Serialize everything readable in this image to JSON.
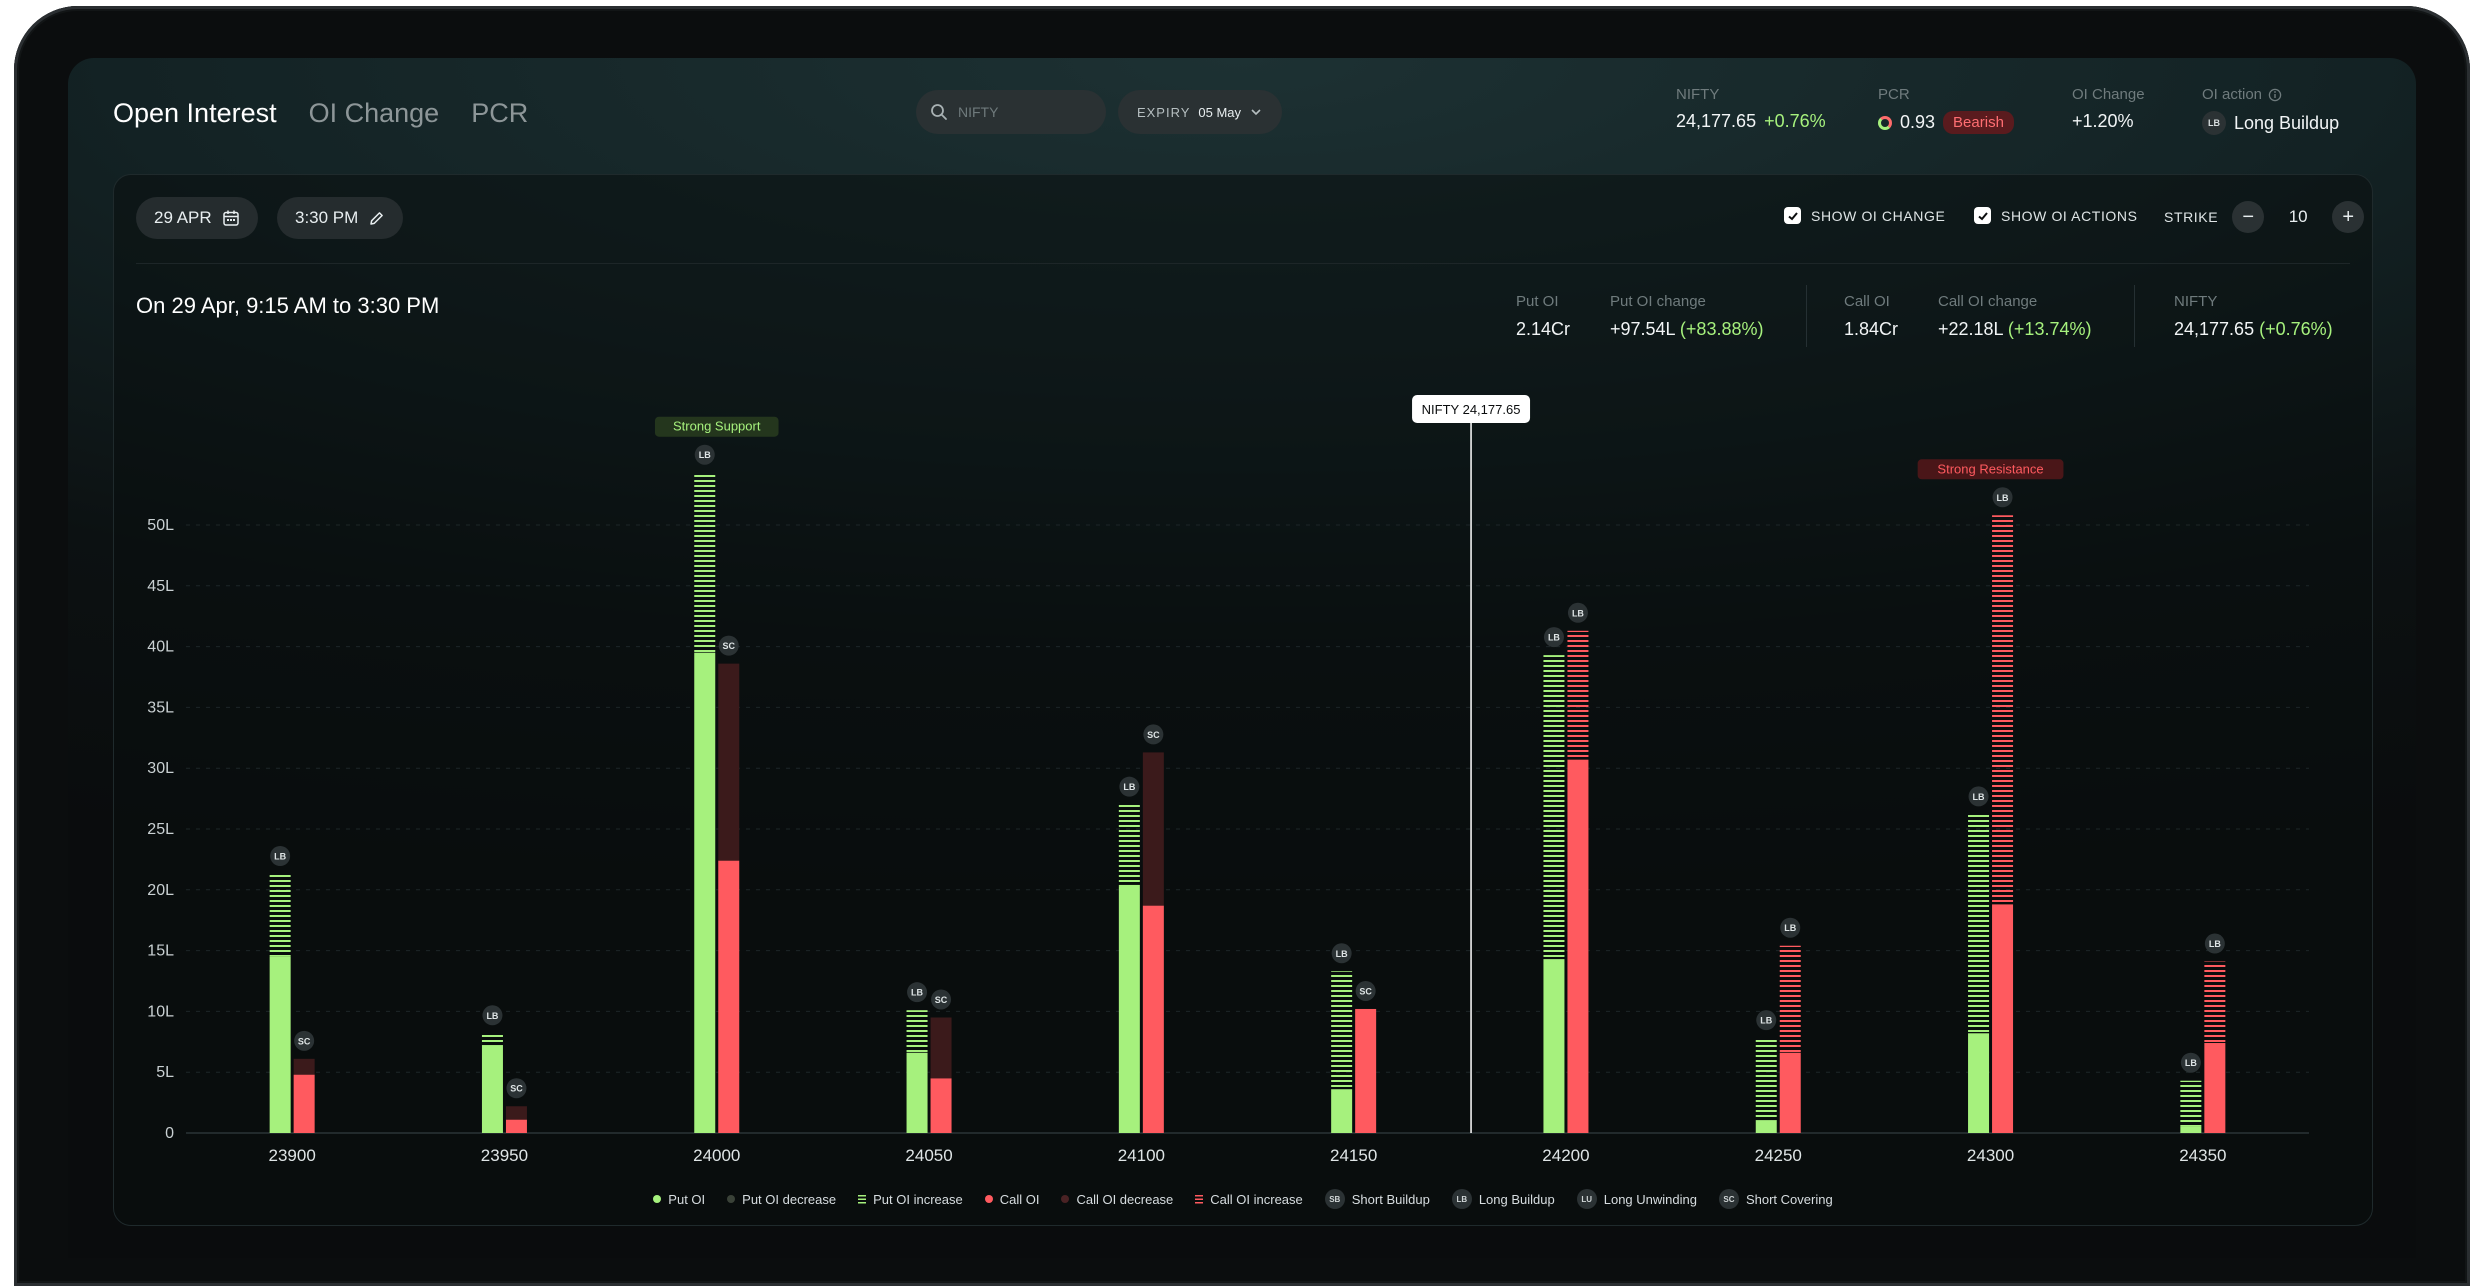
{
  "tabs": [
    {
      "label": "Open Interest",
      "active": true
    },
    {
      "label": "OI Change",
      "active": false
    },
    {
      "label": "PCR",
      "active": false
    }
  ],
  "search": {
    "placeholder": "NIFTY"
  },
  "expiry": {
    "label": "EXPIRY",
    "value": "05 May"
  },
  "header_stats": {
    "nifty": {
      "label": "NIFTY",
      "value": "24,177.65",
      "change": "+0.76%"
    },
    "pcr": {
      "label": "PCR",
      "value": "0.93",
      "badge": "Bearish"
    },
    "oi_change": {
      "label": "OI Change",
      "value": "+1.20%"
    },
    "oi_action": {
      "label": "OI action",
      "chip": "LB",
      "value": "Long Buildup"
    }
  },
  "toolbar": {
    "date": "29 APR",
    "time": "3:30 PM",
    "show_oi_change": "SHOW OI CHANGE",
    "show_oi_actions": "SHOW OI ACTIONS",
    "strike_label": "STRIKE",
    "strike_value": "10"
  },
  "range_title": "On 29 Apr, 9:15 AM to 3:30 PM",
  "summary": {
    "put_oi": {
      "label": "Put OI",
      "value": "2.14Cr"
    },
    "put_oi_change": {
      "label": "Put OI change",
      "value": "+97.54L",
      "pct": "(+83.88%)"
    },
    "call_oi": {
      "label": "Call OI",
      "value": "1.84Cr"
    },
    "call_oi_change": {
      "label": "Call OI change",
      "value": "+22.18L",
      "pct": "(+13.74%)"
    },
    "nifty": {
      "label": "NIFTY",
      "value": "24,177.65",
      "pct": "(+0.76%)"
    }
  },
  "colors": {
    "put": "#a6f17d",
    "call": "#ff5a5f",
    "put_decrease": "#2c3a26",
    "call_decrease": "#3b1a1b",
    "grid": "#1d2628"
  },
  "chart_data": {
    "type": "bar",
    "ylim": [
      0,
      50
    ],
    "yticks": [
      0,
      5,
      10,
      15,
      20,
      25,
      30,
      35,
      40,
      45,
      50
    ],
    "ytick_labels": [
      "0",
      "5L",
      "10L",
      "15L",
      "20L",
      "25L",
      "30L",
      "35L",
      "40L",
      "45L",
      "50L"
    ],
    "categories": [
      "23900",
      "23950",
      "24000",
      "24050",
      "24100",
      "24150",
      "24200",
      "24250",
      "24300",
      "24350"
    ],
    "series": [
      {
        "name": "Put OI",
        "values": [
          14.5,
          7.2,
          39.5,
          6.6,
          20.4,
          3.6,
          14.3,
          1.0,
          8.2,
          0.5
        ]
      },
      {
        "name": "Put OI increase",
        "values": [
          6.8,
          1.0,
          14.8,
          3.5,
          6.6,
          9.7,
          25.0,
          6.8,
          18.0,
          3.8
        ]
      },
      {
        "name": "Put OI decrease",
        "values": [
          0,
          0,
          0,
          0,
          0,
          0,
          0,
          0,
          0,
          0
        ]
      },
      {
        "name": "Call OI",
        "values": [
          4.8,
          1.1,
          22.4,
          4.5,
          18.7,
          10.2,
          30.7,
          6.6,
          18.8,
          7.4
        ]
      },
      {
        "name": "Call OI increase",
        "values": [
          0,
          0,
          0,
          0,
          0,
          0,
          10.6,
          8.8,
          32.0,
          6.7
        ]
      },
      {
        "name": "Call OI decrease",
        "values": [
          1.3,
          1.1,
          16.2,
          5.0,
          12.6,
          0,
          0,
          0,
          0,
          0
        ]
      }
    ],
    "put_actions": [
      "LB",
      "LB",
      "LB",
      "LB",
      "LB",
      "LB",
      "LB",
      "LB",
      "LB",
      "LB"
    ],
    "call_actions": [
      "SC",
      "SC",
      "SC",
      "SC",
      "SC",
      "SC",
      "LB",
      "LB",
      "LB",
      "LB"
    ],
    "annotations": [
      {
        "text": "Strong Support",
        "strike": "24000",
        "side": "put"
      },
      {
        "text": "Strong Resistance",
        "strike": "24300",
        "side": "call"
      }
    ],
    "spot_marker": {
      "label": "NIFTY 24,177.65",
      "value": 24177.65
    },
    "legend": [
      {
        "label": "Put OI",
        "kind": "put"
      },
      {
        "label": "Put OI decrease",
        "kind": "put_dec"
      },
      {
        "label": "Put OI increase",
        "kind": "put_inc"
      },
      {
        "label": "Call OI",
        "kind": "call"
      },
      {
        "label": "Call OI decrease",
        "kind": "call_dec"
      },
      {
        "label": "Call OI increase",
        "kind": "call_inc"
      },
      {
        "label": "Short Buildup",
        "chip": "SB"
      },
      {
        "label": "Long Buildup",
        "chip": "LB"
      },
      {
        "label": "Long Unwinding",
        "chip": "LU"
      },
      {
        "label": "Short Covering",
        "chip": "SC"
      }
    ]
  }
}
